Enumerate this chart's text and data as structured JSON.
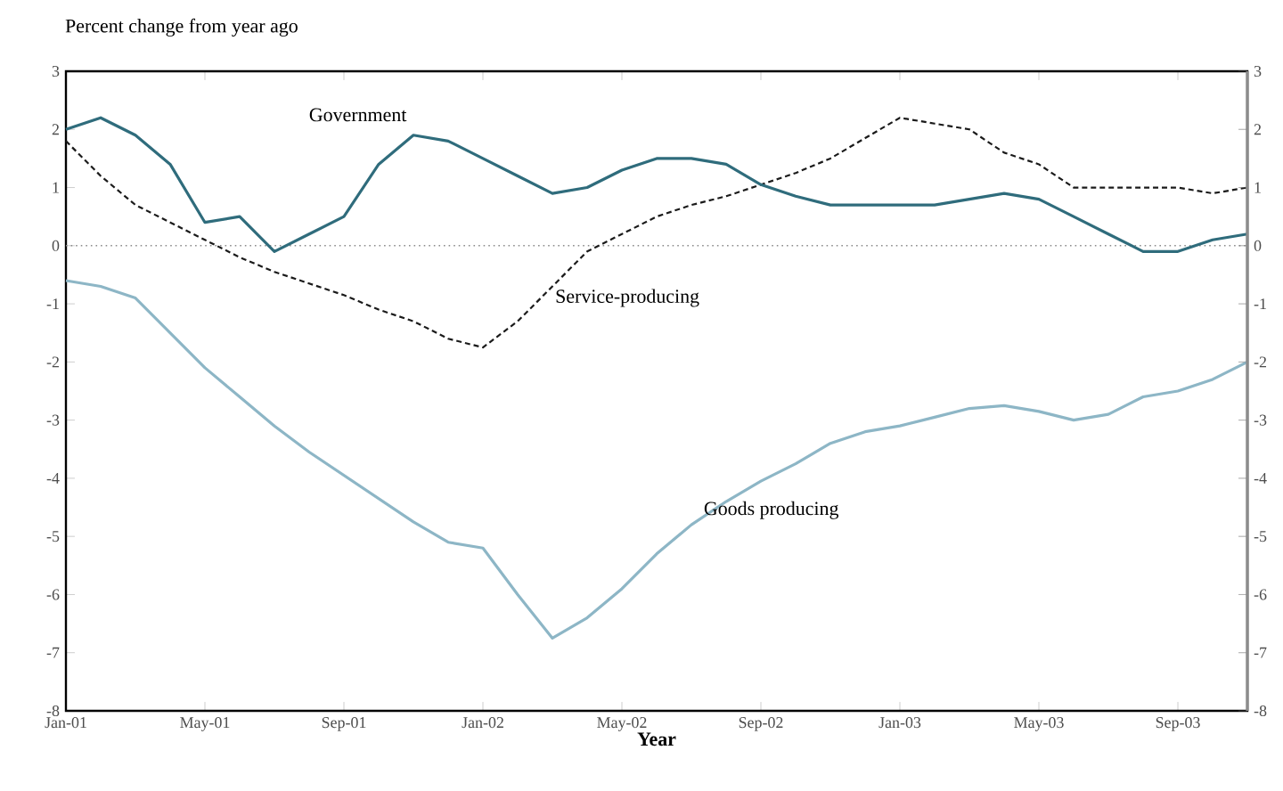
{
  "chart_data": {
    "type": "line",
    "title": "Percent change from year ago",
    "xlabel": "Year",
    "x": [
      "2001-01",
      "2001-02",
      "2001-03",
      "2001-04",
      "2001-05",
      "2001-06",
      "2001-07",
      "2001-08",
      "2001-09",
      "2001-10",
      "2001-11",
      "2001-12",
      "2002-01",
      "2002-02",
      "2002-03",
      "2002-04",
      "2002-05",
      "2002-06",
      "2002-07",
      "2002-08",
      "2002-09",
      "2002-10",
      "2002-11",
      "2002-12",
      "2003-01",
      "2003-02",
      "2003-03",
      "2003-04",
      "2003-05",
      "2003-06",
      "2003-07",
      "2003-08",
      "2003-09",
      "2003-10",
      "2003-11"
    ],
    "series": [
      {
        "name": "Government",
        "color": "#2f6c7c",
        "line_style": "solid",
        "values": [
          2.0,
          2.2,
          1.9,
          1.4,
          0.4,
          0.5,
          -0.1,
          0.2,
          0.5,
          1.4,
          1.9,
          1.8,
          1.5,
          1.2,
          0.9,
          1.0,
          1.3,
          1.5,
          1.5,
          1.4,
          1.05,
          0.85,
          0.7,
          0.7,
          0.7,
          0.7,
          0.8,
          0.9,
          0.8,
          0.5,
          0.2,
          -0.1,
          -0.1,
          0.1,
          0.2
        ]
      },
      {
        "name": "Service-producing",
        "color": "#1a1a1a",
        "line_style": "dashed",
        "values": [
          1.8,
          1.2,
          0.7,
          0.4,
          0.1,
          -0.2,
          -0.45,
          -0.65,
          -0.85,
          -1.1,
          -1.3,
          -1.6,
          -1.75,
          -1.3,
          -0.7,
          -0.1,
          0.2,
          0.5,
          0.7,
          0.85,
          1.05,
          1.25,
          1.5,
          1.85,
          2.2,
          2.1,
          2.0,
          1.6,
          1.4,
          1.0,
          1.0,
          1.0,
          1.0,
          0.9,
          1.0
        ]
      },
      {
        "name": "Goods producing",
        "color": "#8db6c6",
        "line_style": "solid",
        "values": [
          -0.6,
          -0.7,
          -0.9,
          -1.5,
          -2.1,
          -2.6,
          -3.1,
          -3.55,
          -3.95,
          -4.35,
          -4.75,
          -5.1,
          -5.2,
          -6.0,
          -6.75,
          -6.4,
          -5.9,
          -5.3,
          -4.8,
          -4.4,
          -4.05,
          -3.75,
          -3.4,
          -3.2,
          -3.1,
          -2.95,
          -2.8,
          -2.75,
          -2.85,
          -3.0,
          -2.9,
          -2.6,
          -2.5,
          -2.3,
          -2.0
        ]
      }
    ],
    "xlim": [
      "2001-01",
      "2003-11"
    ],
    "xticks": [
      {
        "value": "2001-01",
        "label": "Jan-01"
      },
      {
        "value": "2001-05",
        "label": "May-01"
      },
      {
        "value": "2001-09",
        "label": "Sep-01"
      },
      {
        "value": "2002-01",
        "label": "Jan-02"
      },
      {
        "value": "2002-05",
        "label": "May-02"
      },
      {
        "value": "2002-09",
        "label": "Sep-02"
      },
      {
        "value": "2003-01",
        "label": "Jan-03"
      },
      {
        "value": "2003-05",
        "label": "May-03"
      },
      {
        "value": "2003-09",
        "label": "Sep-03"
      }
    ],
    "ylim": [
      -8,
      3
    ],
    "yticks": [
      3,
      2,
      1,
      0,
      -1,
      -2,
      -3,
      -4,
      -5,
      -6,
      -7,
      -8
    ],
    "y2lim": [
      -8,
      3
    ],
    "y2ticks": [
      3,
      2,
      1,
      0,
      -1,
      -2,
      -3,
      -4,
      -5,
      -6,
      -7,
      -8
    ],
    "ref_lines": [
      {
        "axis": "y",
        "value": 0,
        "color": "#8a8a8a",
        "line_style": "dotted"
      }
    ],
    "grid": false,
    "legend": false,
    "marker": "none"
  }
}
